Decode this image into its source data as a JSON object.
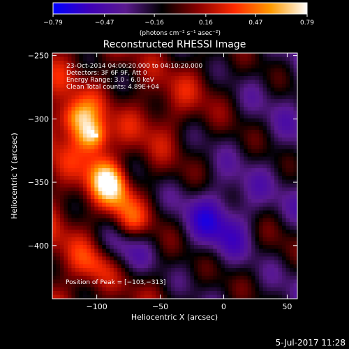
{
  "chart_data": {
    "type": "heatmap",
    "title": "Reconstructed RHESSI Image",
    "xlabel": "Heliocentric X (arcsec)",
    "ylabel": "Heliocentric Y (arcsec)",
    "xlim": [
      -135,
      58
    ],
    "ylim": [
      -442,
      -248
    ],
    "xticks": [
      -100,
      -50,
      0,
      50
    ],
    "yticks": [
      -250,
      -300,
      -350,
      -400
    ],
    "xtick_labels": [
      "−100",
      "−50",
      "0",
      "50"
    ],
    "ytick_labels": [
      "−250",
      "−300",
      "−350",
      "−400"
    ],
    "colorbar": {
      "range": [
        -0.79,
        0.79
      ],
      "ticks": [
        -0.79,
        -0.47,
        -0.16,
        0.16,
        0.47,
        0.79
      ],
      "tick_labels": [
        "−0.79",
        "−0.47",
        "−0.16",
        "0.16",
        "0.47",
        "0.79"
      ],
      "unit_label": "(photons cm⁻² s⁻¹ asec⁻²)",
      "colors": [
        "#0000ff",
        "#3e00b8",
        "#5a1a8e",
        "#000000",
        "#8a0000",
        "#ff2a00",
        "#ff9a00",
        "#ffffff"
      ]
    },
    "annotations": [
      "23-Oct-2014 04:00:20.000 to 04:10:20.000",
      "Detectors: 3F 6F 9F, Att 0",
      "Energy Range: 3.0 - 6.0 keV",
      "Clean     Total counts: 4.89E+04"
    ],
    "peak_label": "Position of Peak = [−103,−313]",
    "peak": [
      -103,
      -313
    ],
    "peak_value": 0.79,
    "features": [
      {
        "kind": "ridge",
        "path": [
          [
            -110,
            -300
          ],
          [
            -95,
            -340
          ],
          [
            -75,
            -380
          ]
        ],
        "sigma": 10,
        "amp": 0.35
      },
      {
        "kind": "blob",
        "center": [
          -120,
          -300
        ],
        "sigma": 10,
        "amp": 0.35
      },
      {
        "kind": "blob",
        "center": [
          -103,
          -313
        ],
        "sigma": 8,
        "amp": 0.45
      },
      {
        "kind": "blob",
        "center": [
          -90,
          -350
        ],
        "sigma": 10,
        "amp": 0.4
      },
      {
        "kind": "blob",
        "center": [
          -100,
          -415
        ],
        "sigma": 12,
        "amp": 0.3
      },
      {
        "kind": "blob",
        "center": [
          -50,
          -300
        ],
        "sigma": 18,
        "amp": 0.2
      },
      {
        "kind": "blob",
        "center": [
          -20,
          -270
        ],
        "sigma": 20,
        "amp": 0.15
      },
      {
        "kind": "blob",
        "center": [
          -5,
          -380
        ],
        "sigma": 22,
        "amp": -0.4
      },
      {
        "kind": "blob",
        "center": [
          -80,
          -405
        ],
        "sigma": 15,
        "amp": -0.35
      },
      {
        "kind": "blob",
        "center": [
          40,
          -400
        ],
        "sigma": 20,
        "amp": 0.15
      }
    ],
    "grid": false
  },
  "footer": {
    "date_stamp": "5-Jul-2017 11:28"
  }
}
